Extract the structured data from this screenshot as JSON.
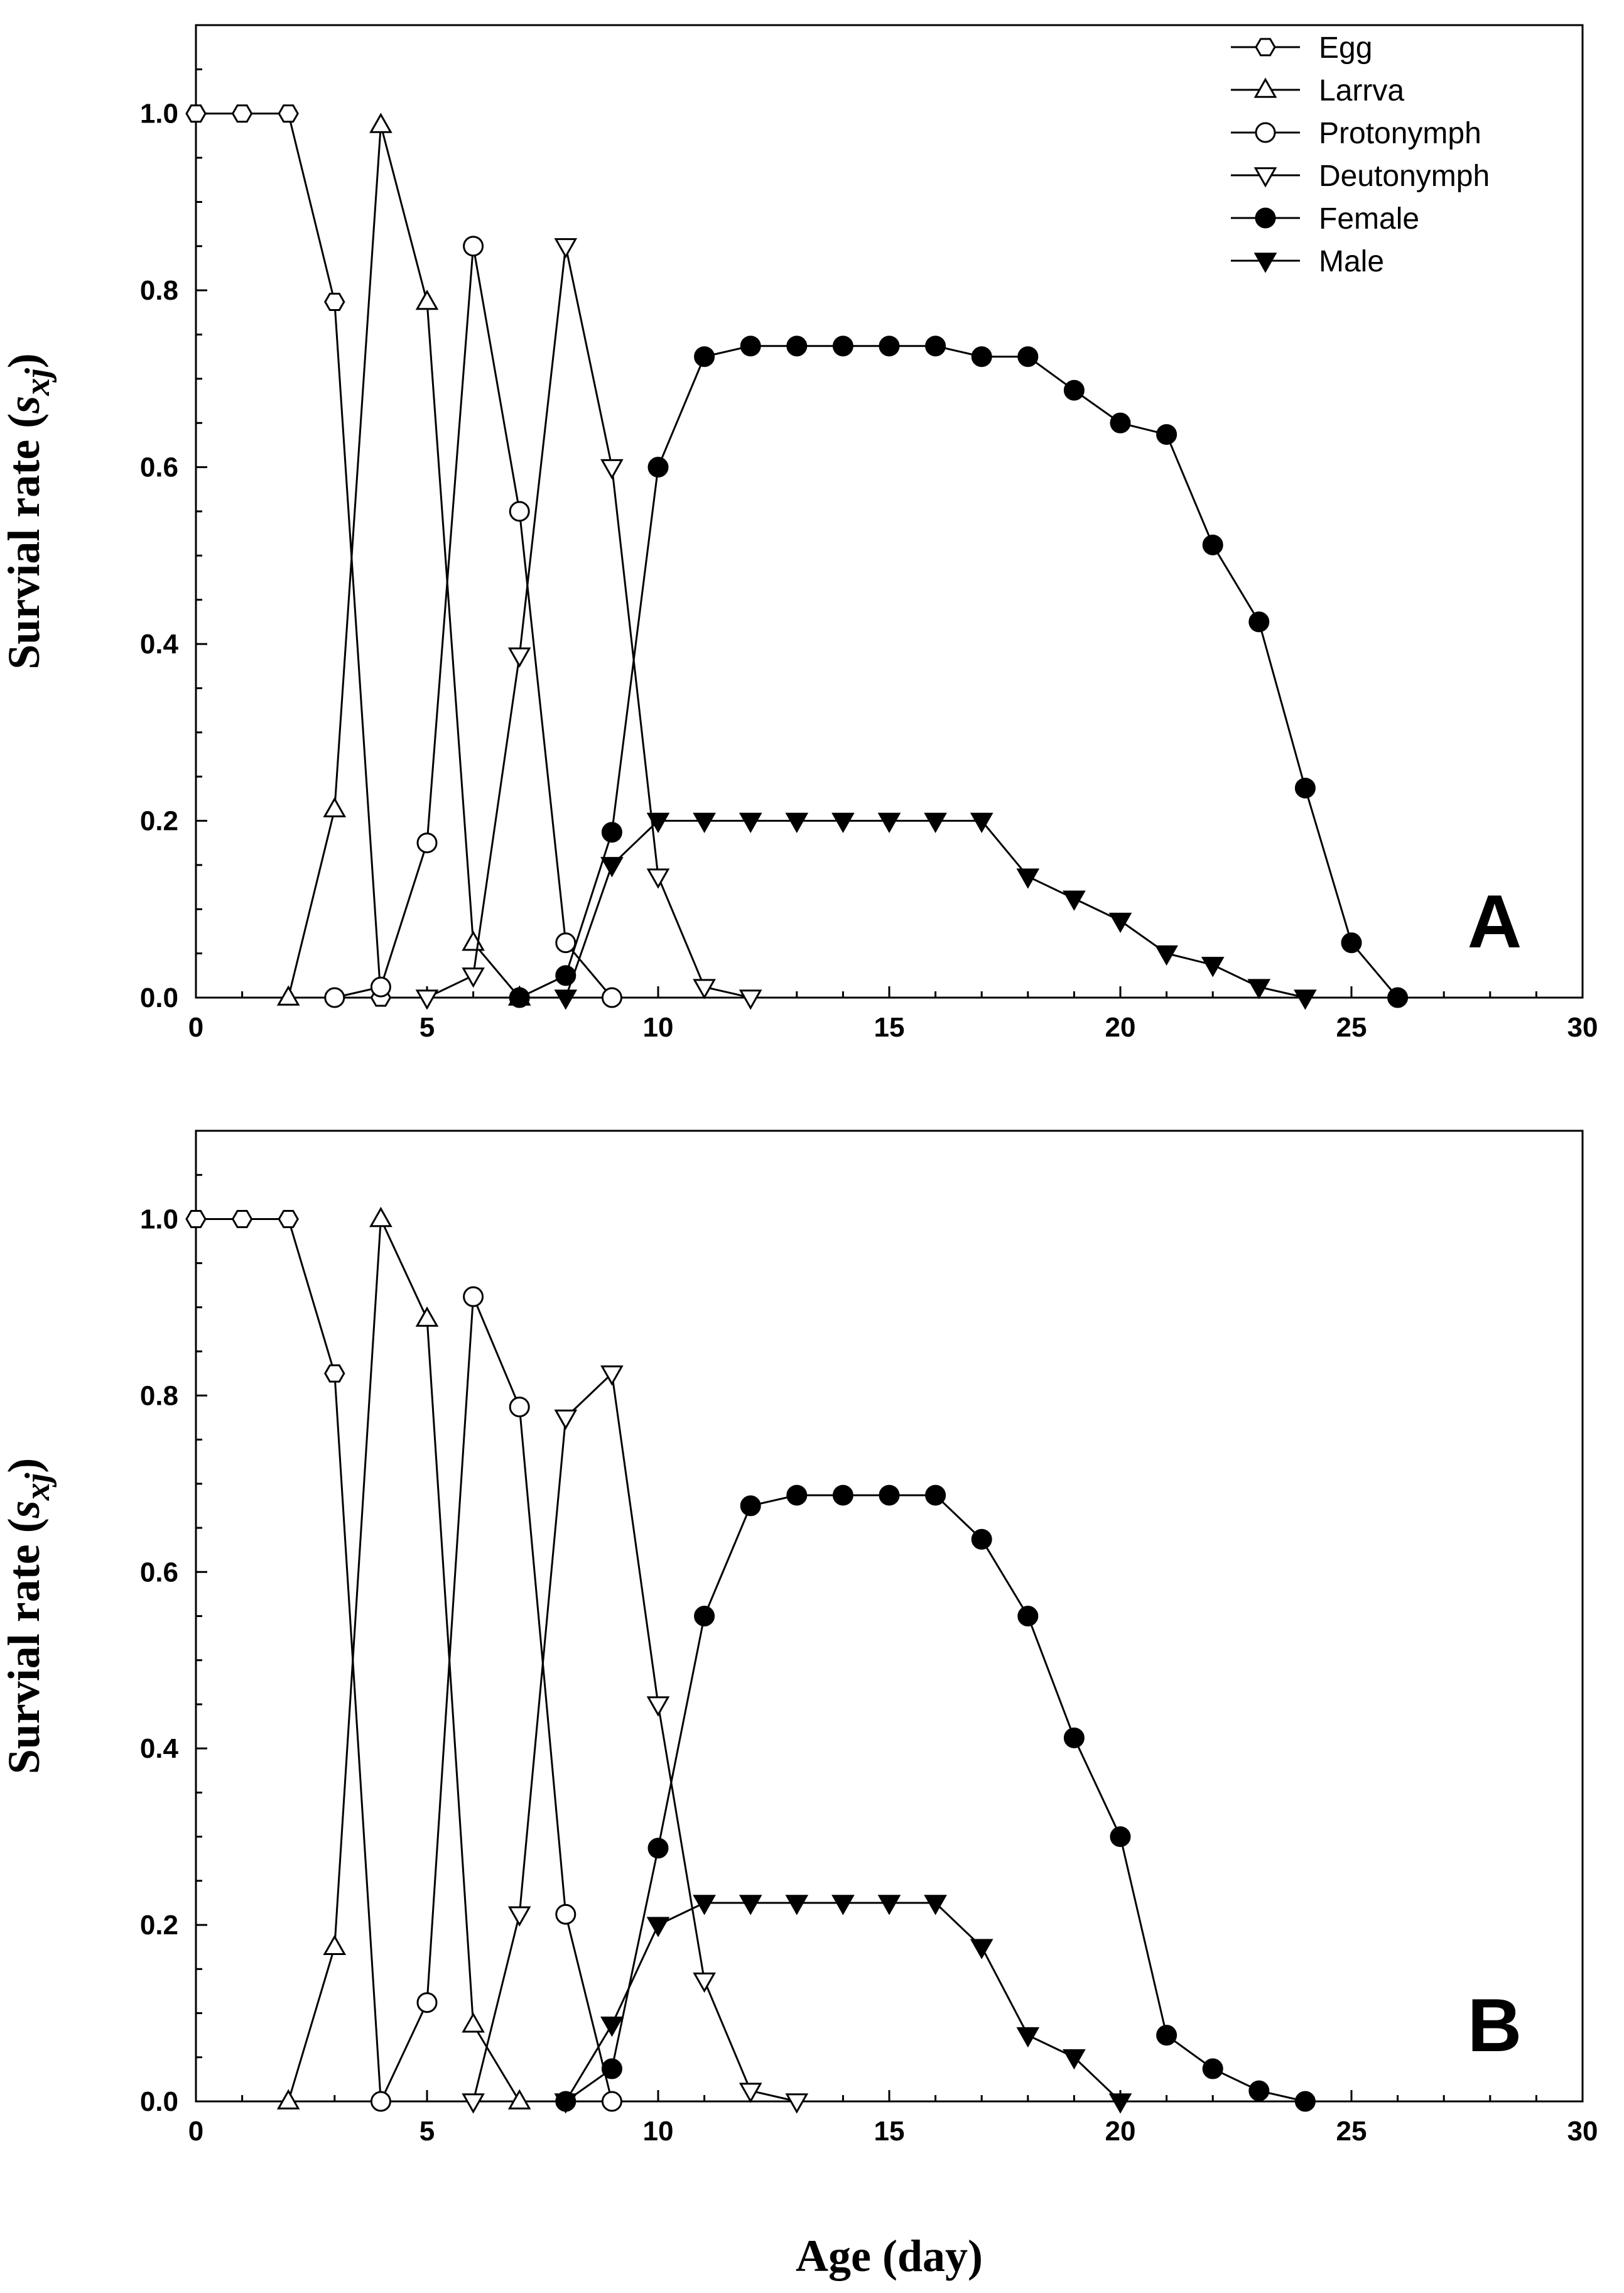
{
  "chart_data": [
    {
      "type": "line",
      "panel_label": "A",
      "xlabel": "",
      "ylabel": "Survial rate (",
      "ylabel_symbol": "s",
      "ylabel_sub": "xj",
      "ylabel_close": ")",
      "xlim": [
        0,
        30
      ],
      "ylim": [
        0,
        1.1
      ],
      "xticks": [
        0,
        5,
        10,
        15,
        20,
        25,
        30
      ],
      "yticks": [
        0.0,
        0.2,
        0.4,
        0.6,
        0.8,
        1.0
      ],
      "xtick_labels": [
        "0",
        "5",
        "10",
        "15",
        "20",
        "25",
        "30"
      ],
      "ytick_labels": [
        "0.0",
        "0.2",
        "0.4",
        "0.6",
        "0.8",
        "1.0"
      ],
      "legend": {
        "position": "top-right",
        "entries": [
          "Egg",
          "Larrva",
          "Protonymph",
          "Deutonymph",
          "Female",
          "Male"
        ]
      },
      "series": [
        {
          "name": "Egg",
          "marker": "hexagon-open",
          "x": [
            0,
            1,
            2,
            3,
            4
          ],
          "y": [
            1.0,
            1.0,
            1.0,
            0.787,
            0.0
          ]
        },
        {
          "name": "Larrva",
          "marker": "triangle-up-open",
          "x": [
            2,
            3,
            4,
            5,
            6,
            7
          ],
          "y": [
            0.0,
            0.213,
            0.987,
            0.787,
            0.062,
            0.0
          ]
        },
        {
          "name": "Protonymph",
          "marker": "circle-open",
          "x": [
            3,
            4,
            5,
            6,
            7,
            8,
            9
          ],
          "y": [
            0.0,
            0.012,
            0.175,
            0.85,
            0.55,
            0.062,
            0.0
          ]
        },
        {
          "name": "Deutonymph",
          "marker": "triangle-down-open",
          "x": [
            5,
            6,
            7,
            8,
            9,
            10,
            11,
            12
          ],
          "y": [
            0.0,
            0.025,
            0.387,
            0.85,
            0.6,
            0.137,
            0.012,
            0.0
          ]
        },
        {
          "name": "Female",
          "marker": "circle-filled",
          "x": [
            7,
            8,
            9,
            10,
            11,
            12,
            13,
            14,
            15,
            16,
            17,
            18,
            19,
            20,
            21,
            22,
            23,
            24,
            25,
            26
          ],
          "y": [
            0.0,
            0.025,
            0.187,
            0.6,
            0.725,
            0.737,
            0.737,
            0.737,
            0.737,
            0.737,
            0.725,
            0.725,
            0.687,
            0.65,
            0.637,
            0.512,
            0.425,
            0.237,
            0.062,
            0.0
          ]
        },
        {
          "name": "Male",
          "marker": "triangle-down-filled",
          "x": [
            8,
            9,
            10,
            11,
            12,
            13,
            14,
            15,
            16,
            17,
            18,
            19,
            20,
            21,
            22,
            23,
            24
          ],
          "y": [
            0.0,
            0.15,
            0.2,
            0.2,
            0.2,
            0.2,
            0.2,
            0.2,
            0.2,
            0.2,
            0.137,
            0.112,
            0.087,
            0.05,
            0.037,
            0.012,
            0.0
          ]
        }
      ]
    },
    {
      "type": "line",
      "panel_label": "B",
      "xlabel": "Age (day)",
      "ylabel": "Survial rate (",
      "ylabel_symbol": "s",
      "ylabel_sub": "xj",
      "ylabel_close": ")",
      "xlim": [
        0,
        30
      ],
      "ylim": [
        0,
        1.1
      ],
      "xticks": [
        0,
        5,
        10,
        15,
        20,
        25,
        30
      ],
      "yticks": [
        0.0,
        0.2,
        0.4,
        0.6,
        0.8,
        1.0
      ],
      "xtick_labels": [
        "0",
        "5",
        "10",
        "15",
        "20",
        "25",
        "30"
      ],
      "ytick_labels": [
        "0.0",
        "0.2",
        "0.4",
        "0.6",
        "0.8",
        "1.0"
      ],
      "series": [
        {
          "name": "Egg",
          "marker": "hexagon-open",
          "x": [
            0,
            1,
            2,
            3,
            4
          ],
          "y": [
            1.0,
            1.0,
            1.0,
            0.825,
            0.0
          ]
        },
        {
          "name": "Larrva",
          "marker": "triangle-up-open",
          "x": [
            2,
            3,
            4,
            5,
            6,
            7
          ],
          "y": [
            0.0,
            0.175,
            1.0,
            0.887,
            0.087,
            0.0
          ]
        },
        {
          "name": "Protonymph",
          "marker": "circle-open",
          "x": [
            4,
            5,
            6,
            7,
            8,
            9
          ],
          "y": [
            0.0,
            0.112,
            0.912,
            0.787,
            0.212,
            0.0
          ]
        },
        {
          "name": "Deutonymph",
          "marker": "triangle-down-open",
          "x": [
            6,
            7,
            8,
            9,
            10,
            11,
            12,
            13
          ],
          "y": [
            0.0,
            0.212,
            0.775,
            0.825,
            0.45,
            0.137,
            0.012,
            0.0
          ]
        },
        {
          "name": "Female",
          "marker": "circle-filled",
          "x": [
            8,
            9,
            10,
            11,
            12,
            13,
            14,
            15,
            16,
            17,
            18,
            19,
            20,
            21,
            22,
            23,
            24
          ],
          "y": [
            0.0,
            0.037,
            0.287,
            0.55,
            0.675,
            0.687,
            0.687,
            0.687,
            0.687,
            0.637,
            0.55,
            0.412,
            0.3,
            0.075,
            0.037,
            0.012,
            0.0
          ]
        },
        {
          "name": "Male",
          "marker": "triangle-down-filled",
          "x": [
            8,
            9,
            10,
            11,
            12,
            13,
            14,
            15,
            16,
            17,
            18,
            19,
            20
          ],
          "y": [
            0.0,
            0.087,
            0.2,
            0.225,
            0.225,
            0.225,
            0.225,
            0.225,
            0.225,
            0.175,
            0.075,
            0.05,
            0.0
          ]
        }
      ]
    }
  ]
}
